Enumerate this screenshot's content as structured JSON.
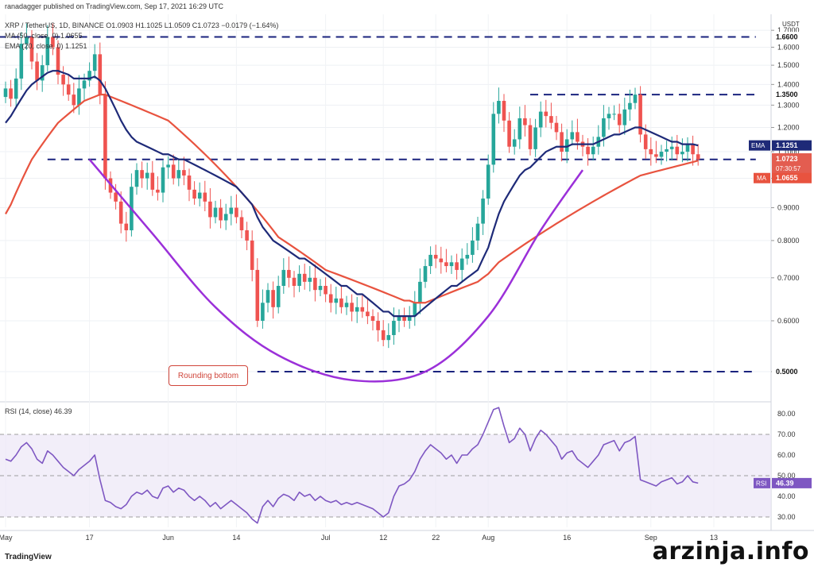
{
  "header": {
    "published": "ranadagger published on TradingView.com, Sep 17, 2021 16:29 UTC",
    "ohlc": "XRP / TetherUS, 1D, BINANCE  O1.0903  H1.1025  L1.0509  C1.0723  −0.0179 (−1.64%)",
    "ma": "MA (50, close, 0)  1.0655",
    "ema": "EMA (20, close, 0)  1.1251",
    "rsi": "RSI (14, close)  46.39"
  },
  "footer": {
    "logo": "TradingView",
    "watermark": "arzinja.info"
  },
  "annotation": "Rounding bottom",
  "colors": {
    "up": "#26a69a",
    "down": "#ef5350",
    "ema": "#1e2a78",
    "ma": "#e8533f",
    "curve": "#9b30d9",
    "rsi": "#7e57c2",
    "hline": "#1a237e"
  },
  "chart_data": {
    "type": "candlestick",
    "price_axis": {
      "unit": "USDT",
      "ticks": [
        0.5,
        0.6,
        0.7,
        0.8,
        0.9,
        1.0,
        1.1,
        1.2,
        1.3,
        1.4,
        1.5,
        1.6,
        1.7
      ],
      "tick_labels": [
        "0.5000",
        "0.6000",
        "0.7000",
        "0.8000",
        "0.9000",
        "1.0000",
        "1.1000",
        "1.2000",
        "1.3000",
        "1.4000",
        "1.5000",
        "1.6000",
        "1.7000"
      ],
      "range": [
        0.45,
        1.78
      ],
      "log_scale": true
    },
    "x_labels": [
      {
        "label": "May",
        "day": 0
      },
      {
        "label": "17",
        "day": 16
      },
      {
        "label": "Jun",
        "day": 31
      },
      {
        "label": "14",
        "day": 44
      },
      {
        "label": "Jul",
        "day": 61
      },
      {
        "label": "12",
        "day": 72
      },
      {
        "label": "22",
        "day": 82
      },
      {
        "label": "Aug",
        "day": 92
      },
      {
        "label": "16",
        "day": 107
      },
      {
        "label": "Sep",
        "day": 123
      },
      {
        "label": "13",
        "day": 135
      }
    ],
    "levels": [
      {
        "label": "1.6600",
        "price": 1.66,
        "from": -4,
        "to": 143
      },
      {
        "label": "1.3500",
        "price": 1.35,
        "from": 100,
        "to": 143
      },
      {
        "label": "1.0700",
        "price": 1.07,
        "from": 8,
        "to": 143
      },
      {
        "label": "0.5000",
        "price": 0.5,
        "from": 48,
        "to": 143
      }
    ],
    "last_price": {
      "label": "1.0723",
      "countdown": "07:30:57"
    },
    "ema_label": {
      "name": "EMA",
      "value": "1.1251"
    },
    "ma_label": {
      "name": "MA",
      "value": "1.0655"
    },
    "close": [
      1.38,
      1.33,
      1.43,
      1.62,
      1.66,
      1.52,
      1.42,
      1.5,
      1.66,
      1.6,
      1.45,
      1.4,
      1.35,
      1.3,
      1.38,
      1.42,
      1.47,
      1.56,
      1.35,
      1.0,
      0.95,
      0.92,
      0.85,
      0.83,
      0.97,
      1.03,
      1.0,
      1.02,
      0.96,
      0.95,
      1.04,
      1.05,
      1.0,
      1.03,
      1.01,
      0.96,
      0.93,
      0.95,
      0.92,
      0.87,
      0.9,
      0.86,
      0.88,
      0.9,
      0.87,
      0.83,
      0.8,
      0.72,
      0.6,
      0.64,
      0.67,
      0.63,
      0.68,
      0.72,
      0.7,
      0.68,
      0.71,
      0.69,
      0.7,
      0.67,
      0.68,
      0.66,
      0.64,
      0.65,
      0.63,
      0.64,
      0.62,
      0.63,
      0.62,
      0.61,
      0.6,
      0.58,
      0.56,
      0.57,
      0.6,
      0.61,
      0.6,
      0.61,
      0.64,
      0.69,
      0.73,
      0.76,
      0.75,
      0.74,
      0.73,
      0.74,
      0.72,
      0.75,
      0.76,
      0.8,
      0.85,
      0.93,
      1.05,
      1.26,
      1.32,
      1.23,
      1.12,
      1.15,
      1.24,
      1.21,
      1.11,
      1.2,
      1.27,
      1.25,
      1.22,
      1.18,
      1.1,
      1.15,
      1.18,
      1.14,
      1.12,
      1.09,
      1.12,
      1.16,
      1.24,
      1.26,
      1.26,
      1.21,
      1.28,
      1.31,
      1.35,
      1.17,
      1.11,
      1.09,
      1.08,
      1.1,
      1.11,
      1.12,
      1.09,
      1.1,
      1.13,
      1.09,
      1.07
    ],
    "ema20": [
      1.22,
      1.25,
      1.29,
      1.33,
      1.37,
      1.4,
      1.42,
      1.44,
      1.46,
      1.47,
      1.47,
      1.46,
      1.45,
      1.43,
      1.43,
      1.43,
      1.43,
      1.44,
      1.42,
      1.38,
      1.33,
      1.28,
      1.23,
      1.19,
      1.16,
      1.14,
      1.13,
      1.12,
      1.11,
      1.1,
      1.09,
      1.09,
      1.08,
      1.07,
      1.07,
      1.06,
      1.05,
      1.04,
      1.03,
      1.02,
      1.01,
      1.0,
      0.99,
      0.98,
      0.97,
      0.95,
      0.93,
      0.91,
      0.87,
      0.84,
      0.82,
      0.8,
      0.79,
      0.78,
      0.77,
      0.76,
      0.75,
      0.75,
      0.74,
      0.73,
      0.72,
      0.71,
      0.7,
      0.69,
      0.68,
      0.68,
      0.67,
      0.66,
      0.66,
      0.65,
      0.64,
      0.63,
      0.62,
      0.62,
      0.61,
      0.61,
      0.61,
      0.61,
      0.61,
      0.62,
      0.63,
      0.64,
      0.65,
      0.66,
      0.67,
      0.68,
      0.68,
      0.69,
      0.7,
      0.71,
      0.72,
      0.75,
      0.78,
      0.83,
      0.88,
      0.92,
      0.95,
      0.98,
      1.01,
      1.03,
      1.04,
      1.06,
      1.08,
      1.1,
      1.11,
      1.12,
      1.12,
      1.12,
      1.13,
      1.13,
      1.13,
      1.13,
      1.13,
      1.14,
      1.15,
      1.16,
      1.17,
      1.17,
      1.18,
      1.19,
      1.2,
      1.2,
      1.19,
      1.18,
      1.17,
      1.16,
      1.15,
      1.14,
      1.14,
      1.13,
      1.13,
      1.13,
      1.125
    ],
    "ma50": [
      0.88,
      0.91,
      0.95,
      0.99,
      1.03,
      1.07,
      1.1,
      1.13,
      1.16,
      1.19,
      1.22,
      1.24,
      1.26,
      1.28,
      1.3,
      1.32,
      1.33,
      1.34,
      1.35,
      1.35,
      1.34,
      1.33,
      1.32,
      1.31,
      1.3,
      1.29,
      1.28,
      1.27,
      1.26,
      1.25,
      1.24,
      1.23,
      1.21,
      1.19,
      1.17,
      1.15,
      1.13,
      1.11,
      1.09,
      1.07,
      1.05,
      1.03,
      1.01,
      0.99,
      0.97,
      0.95,
      0.93,
      0.91,
      0.89,
      0.87,
      0.85,
      0.83,
      0.81,
      0.8,
      0.79,
      0.78,
      0.77,
      0.76,
      0.75,
      0.74,
      0.73,
      0.72,
      0.715,
      0.71,
      0.705,
      0.7,
      0.695,
      0.69,
      0.685,
      0.68,
      0.675,
      0.67,
      0.665,
      0.66,
      0.655,
      0.65,
      0.645,
      0.645,
      0.64,
      0.64,
      0.64,
      0.645,
      0.65,
      0.655,
      0.66,
      0.665,
      0.67,
      0.675,
      0.68,
      0.685,
      0.69,
      0.7,
      0.71,
      0.725,
      0.74,
      0.75,
      0.76,
      0.77,
      0.78,
      0.79,
      0.8,
      0.81,
      0.82,
      0.83,
      0.84,
      0.85,
      0.86,
      0.87,
      0.88,
      0.89,
      0.9,
      0.91,
      0.92,
      0.93,
      0.94,
      0.95,
      0.96,
      0.97,
      0.98,
      0.99,
      1.0,
      1.01,
      1.015,
      1.02,
      1.025,
      1.03,
      1.035,
      1.04,
      1.045,
      1.05,
      1.055,
      1.06,
      1.0655
    ],
    "rounding_bottom": [
      [
        16,
        1.07
      ],
      [
        28,
        0.82
      ],
      [
        40,
        0.63
      ],
      [
        52,
        0.53
      ],
      [
        66,
        0.485
      ],
      [
        80,
        0.5
      ],
      [
        92,
        0.61
      ],
      [
        102,
        0.83
      ],
      [
        110,
        1.03
      ]
    ],
    "rsi": {
      "ticks": [
        30,
        40,
        50,
        60,
        70,
        80
      ],
      "tick_labels": [
        "30.00",
        "40.00",
        "50.00",
        "60.00",
        "70.00",
        "80.00"
      ],
      "range": [
        25,
        85
      ],
      "bands": [
        30,
        50,
        70
      ],
      "current": {
        "name": "RSI",
        "value": "46.39"
      },
      "values": [
        58,
        57,
        60,
        64,
        66,
        63,
        58,
        56,
        62,
        60,
        57,
        54,
        52,
        50,
        53,
        55,
        57,
        60,
        48,
        38,
        37,
        35,
        34,
        36,
        40,
        42,
        41,
        43,
        40,
        39,
        44,
        45,
        42,
        44,
        43,
        40,
        38,
        40,
        38,
        35,
        37,
        34,
        36,
        38,
        36,
        34,
        32,
        29,
        27,
        35,
        38,
        35,
        39,
        41,
        40,
        38,
        42,
        40,
        41,
        38,
        40,
        38,
        37,
        38,
        36,
        37,
        36,
        37,
        36,
        35,
        34,
        32,
        30,
        32,
        40,
        45,
        46,
        48,
        52,
        58,
        62,
        65,
        63,
        61,
        58,
        60,
        56,
        60,
        60,
        63,
        65,
        70,
        76,
        82,
        83,
        74,
        66,
        68,
        73,
        70,
        62,
        68,
        72,
        70,
        67,
        64,
        58,
        61,
        62,
        58,
        56,
        54,
        57,
        60,
        65,
        66,
        67,
        62,
        66,
        67,
        69,
        48,
        47,
        46,
        45,
        47,
        48,
        49,
        46,
        47,
        50,
        47,
        46.39
      ]
    }
  }
}
